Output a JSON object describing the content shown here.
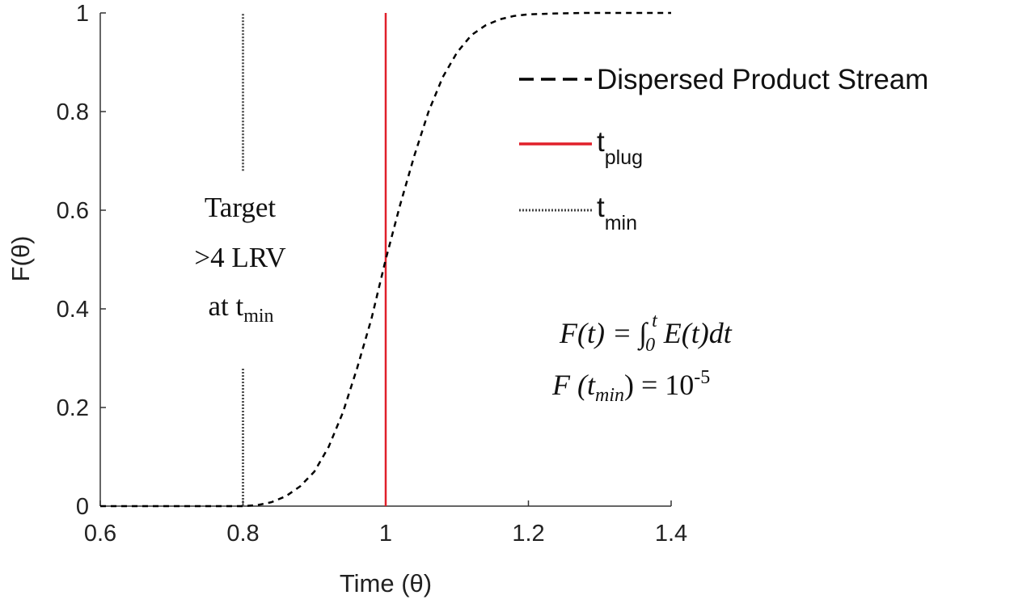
{
  "chart_data": {
    "type": "line",
    "xlabel": "Time (θ)",
    "ylabel": "F(θ)",
    "xlim": [
      0.6,
      1.4
    ],
    "ylim": [
      0,
      1
    ],
    "xticks": [
      "0.6",
      "0.8",
      "1",
      "1.2",
      "1.4"
    ],
    "yticks": [
      "0",
      "0.2",
      "0.4",
      "0.6",
      "0.8",
      "1"
    ],
    "xtick_values": [
      0.6,
      0.8,
      1.0,
      1.2,
      1.4
    ],
    "ytick_values": [
      0,
      0.2,
      0.4,
      0.6,
      0.8,
      1.0
    ],
    "grid": false,
    "legend_placement": "top-right",
    "series": [
      {
        "name": "Dispersed Product Stream",
        "style": "dashed",
        "color": "#000000",
        "x": [
          0.6,
          0.7,
          0.8,
          0.82,
          0.84,
          0.86,
          0.88,
          0.9,
          0.92,
          0.94,
          0.96,
          0.98,
          1.0,
          1.02,
          1.04,
          1.06,
          1.08,
          1.1,
          1.12,
          1.14,
          1.16,
          1.18,
          1.2,
          1.24,
          1.28,
          1.32,
          1.36,
          1.4
        ],
        "y": [
          0,
          0,
          0,
          0.002,
          0.008,
          0.02,
          0.04,
          0.07,
          0.12,
          0.19,
          0.28,
          0.38,
          0.5,
          0.61,
          0.71,
          0.8,
          0.87,
          0.92,
          0.955,
          0.975,
          0.987,
          0.994,
          0.997,
          0.999,
          1.0,
          1.0,
          1.0,
          1.0
        ]
      }
    ],
    "vlines": [
      {
        "name": "t",
        "sub": "plug",
        "x": 1.0,
        "style": "solid",
        "color": "#e0202a"
      },
      {
        "name": "t",
        "sub": "min",
        "x": 0.8,
        "style": "dotted",
        "color": "#555555",
        "segments": [
          [
            0,
            0.28
          ],
          [
            0.68,
            1.0
          ]
        ]
      }
    ],
    "annotations": {
      "target_line1": "Target",
      "target_line2": ">4 LRV",
      "target_line3": "at t",
      "target_line3_sub": "min",
      "eq1": "F(t) = ∫",
      "eq1_lower": "0",
      "eq1_upper": "t",
      "eq1_rest": "E(t)dt",
      "eq2_a": "F (t",
      "eq2_sub": "min",
      "eq2_b": ") = 10",
      "eq2_sup": "-5"
    }
  }
}
